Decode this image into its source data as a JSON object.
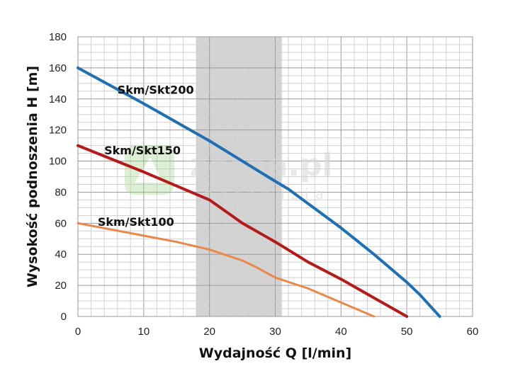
{
  "chart_data": {
    "type": "line",
    "title": "",
    "xlabel": "Wydajność Q [l/min]",
    "ylabel": "Wysokość podnoszenia H [m]",
    "xlim": [
      0,
      60
    ],
    "ylim": [
      0,
      180
    ],
    "x_ticks": [
      "0",
      "10",
      "20",
      "30",
      "40",
      "50",
      "60"
    ],
    "y_ticks": [
      "0",
      "20",
      "40",
      "60",
      "80",
      "100",
      "120",
      "140",
      "160",
      "180"
    ],
    "grid": true,
    "highlight_band": {
      "x": [
        18,
        31
      ]
    },
    "series": [
      {
        "name": "Skm/Skt200",
        "color": "#1f6fb2",
        "x": [
          0,
          10,
          20,
          25,
          30,
          32,
          40,
          45,
          50,
          52,
          55
        ],
        "y": [
          160,
          137,
          113,
          100,
          87,
          82,
          57,
          40,
          22,
          14,
          0
        ]
      },
      {
        "name": "Skm/Skt150",
        "color": "#b51a1a",
        "x": [
          0,
          10,
          15,
          20,
          25,
          30,
          35,
          40,
          45,
          50
        ],
        "y": [
          110,
          93,
          84,
          75,
          60,
          48,
          35,
          24,
          12,
          0
        ]
      },
      {
        "name": "Skm/Skt100",
        "color": "#e8894a",
        "x": [
          0,
          10,
          15,
          20,
          25,
          27,
          30,
          35,
          40,
          45
        ],
        "y": [
          60,
          52,
          48,
          43,
          36,
          32,
          25,
          18,
          9,
          0
        ]
      }
    ]
  },
  "watermark": {
    "main": "zerga.pl",
    "sub": "narzedzia"
  }
}
